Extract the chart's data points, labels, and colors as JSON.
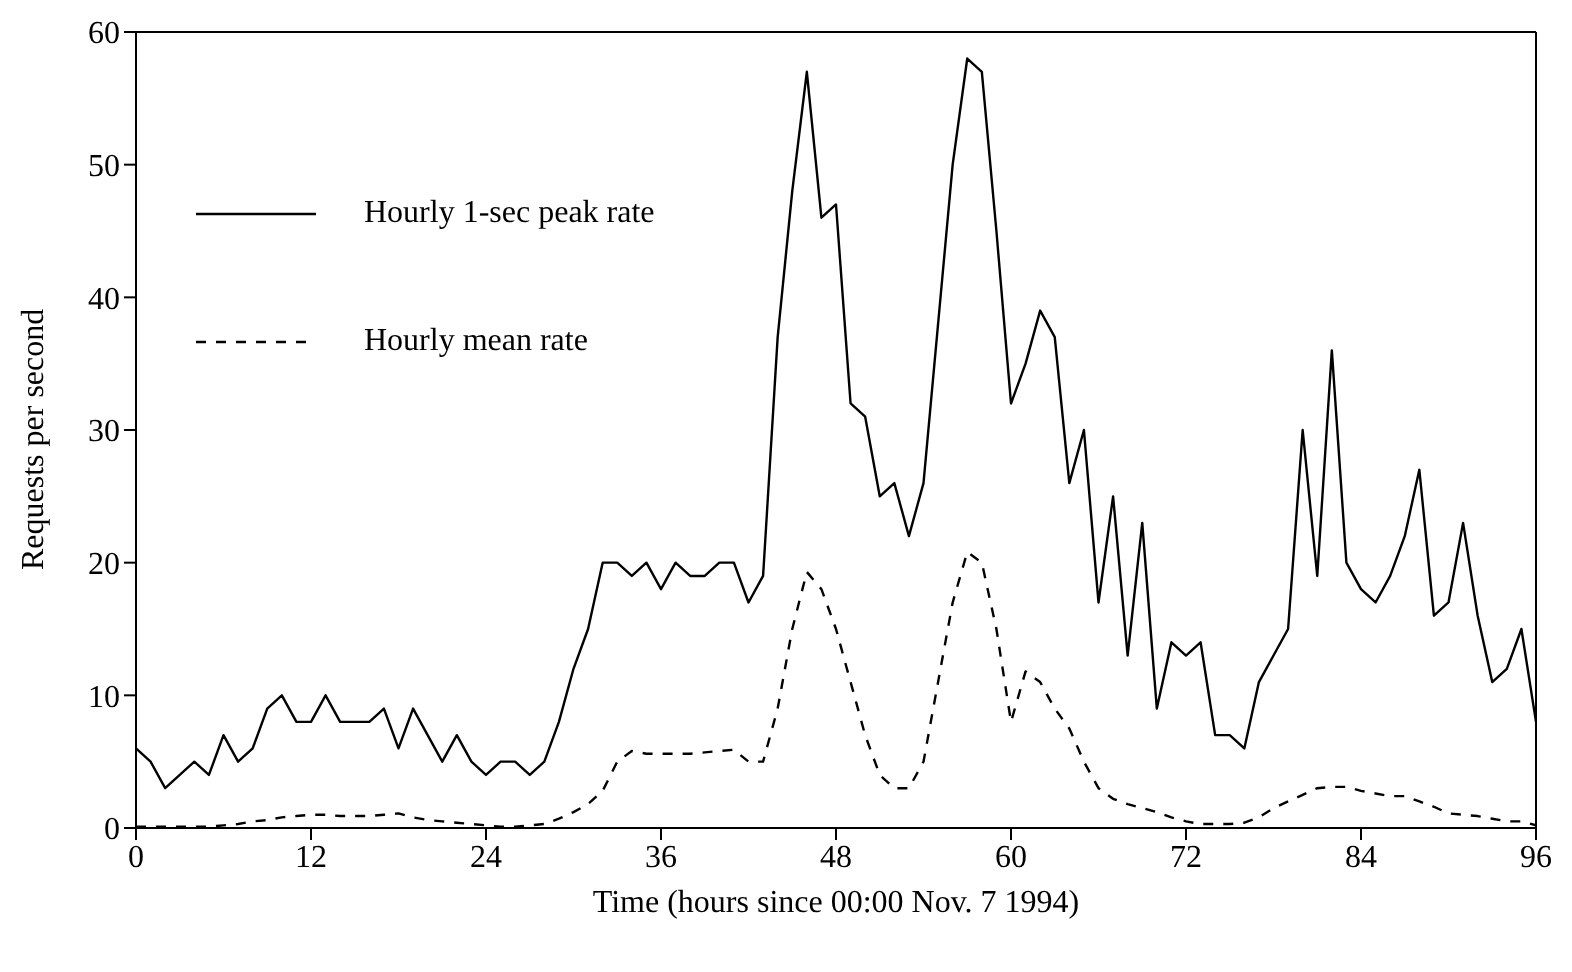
{
  "chart_data": {
    "type": "line",
    "xlabel": "Time (hours since 00:00 Nov. 7 1994)",
    "ylabel": "Requests per second",
    "x": [
      0,
      1,
      2,
      3,
      4,
      5,
      6,
      7,
      8,
      9,
      10,
      11,
      12,
      13,
      14,
      15,
      16,
      17,
      18,
      19,
      20,
      21,
      22,
      23,
      24,
      25,
      26,
      27,
      28,
      29,
      30,
      31,
      32,
      33,
      34,
      35,
      36,
      37,
      38,
      39,
      40,
      41,
      42,
      43,
      44,
      45,
      46,
      47,
      48,
      49,
      50,
      51,
      52,
      53,
      54,
      55,
      56,
      57,
      58,
      59,
      60,
      61,
      62,
      63,
      64,
      65,
      66,
      67,
      68,
      69,
      70,
      71,
      72,
      73,
      74,
      75,
      76,
      77,
      78,
      79,
      80,
      81,
      82,
      83,
      84,
      85,
      86,
      87,
      88,
      89,
      90,
      91,
      92,
      93,
      94,
      95,
      96
    ],
    "series": [
      {
        "name": "Hourly 1-sec peak rate",
        "color": "#000000",
        "line_style": "solid",
        "values": [
          6,
          5,
          3,
          4,
          5,
          4,
          7,
          5,
          6,
          9,
          10,
          8,
          8,
          10,
          8,
          8,
          8,
          9,
          6,
          9,
          7,
          5,
          7,
          5,
          4,
          5,
          5,
          4,
          5,
          8,
          12,
          15,
          20,
          20,
          19,
          20,
          18,
          20,
          19,
          19,
          20,
          20,
          17,
          19,
          37,
          48,
          57,
          46,
          47,
          32,
          31,
          25,
          26,
          22,
          26,
          38,
          50,
          58,
          57,
          45,
          32,
          35,
          39,
          37,
          26,
          30,
          17,
          25,
          13,
          23,
          9,
          14,
          13,
          14,
          7,
          7,
          6,
          11,
          13,
          15,
          30,
          19,
          36,
          20,
          18,
          17,
          19,
          22,
          27,
          16,
          17,
          23,
          16,
          11,
          12,
          15,
          8
        ]
      },
      {
        "name": "Hourly mean rate",
        "color": "#000000",
        "line_style": "dashed",
        "values": [
          0.1,
          0.1,
          0.1,
          0.1,
          0.1,
          0.1,
          0.2,
          0.3,
          0.5,
          0.6,
          0.8,
          0.9,
          1,
          1,
          0.9,
          0.9,
          0.9,
          1,
          1.1,
          0.8,
          0.6,
          0.5,
          0.4,
          0.3,
          0.2,
          0.1,
          0.1,
          0.2,
          0.3,
          0.7,
          1.2,
          1.8,
          2.8,
          5,
          5.8,
          5.6,
          5.6,
          5.6,
          5.6,
          5.7,
          5.8,
          5.9,
          5,
          5,
          9,
          15,
          19.3,
          18,
          15,
          11,
          7,
          4,
          3,
          3,
          5,
          11,
          17,
          20.8,
          20,
          15,
          8,
          11.8,
          11,
          9,
          7.5,
          5,
          3,
          2.2,
          1.8,
          1.5,
          1.2,
          0.8,
          0.5,
          0.3,
          0.3,
          0.3,
          0.4,
          0.8,
          1.5,
          2,
          2.5,
          3,
          3.1,
          3.1,
          2.8,
          2.6,
          2.4,
          2.4,
          2,
          1.6,
          1.1,
          1,
          0.9,
          0.7,
          0.5,
          0.5,
          0.2
        ]
      }
    ],
    "xlim": [
      0,
      96
    ],
    "xticks": [
      0,
      12,
      24,
      36,
      48,
      60,
      72,
      84,
      96
    ],
    "ylim": [
      0,
      60
    ],
    "yticks": [
      0,
      10,
      20,
      30,
      40,
      50,
      60
    ],
    "legend": "top left",
    "grid": false,
    "marker": "none"
  }
}
